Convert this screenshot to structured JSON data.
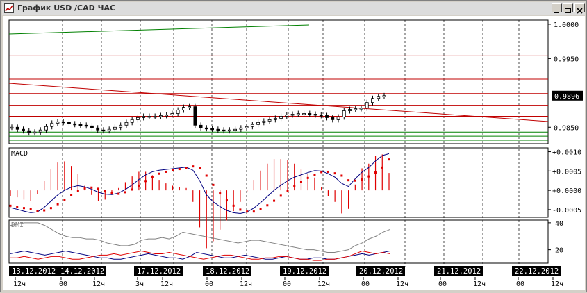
{
  "window": {
    "title": "График USD /CAD  ЧАС",
    "buttons": [
      "minimize",
      "maximize",
      "close"
    ]
  },
  "colors": {
    "background": "#ffffff",
    "frame": "#d4d0c8",
    "candle": "#000000",
    "resistance": "#c00000",
    "support": "#008000",
    "trendline": "#c00000",
    "macd_line": "#000080",
    "macd_signal": "#e00000",
    "dmi_adx": "#808080",
    "dmi_plus": "#000080",
    "dmi_minus": "#e00000",
    "date_label_bg": "#000000",
    "date_label_fg": "#ffffff"
  },
  "price_panel": {
    "axis_labels": [
      "1.0000",
      "0.9950",
      "0.9850"
    ],
    "current_price": "0.9896",
    "ylim": [
      0.9826,
      1.0006
    ]
  },
  "macd_panel": {
    "label": "MACD",
    "axis_labels": [
      "+0.0010",
      "+0.0005",
      "+0.0000",
      "-0.0005"
    ],
    "ylim": [
      -0.0007,
      0.0011
    ]
  },
  "dmi_panel": {
    "label": "DMI",
    "axis_labels": [
      "40",
      "20"
    ],
    "ylim": [
      10,
      42
    ]
  },
  "date_labels": [
    "13.12.2012",
    "14.12.2012",
    "17.12.2012",
    "18.12.2012",
    "19.12.2012",
    "20.12.2012",
    "21.12.2012",
    "22.12.2012"
  ],
  "time_labels": [
    "12ч",
    "00",
    "12ч",
    "3ч",
    "12ч",
    "00",
    "12ч",
    "00",
    "12ч",
    "00",
    "12ч",
    "00",
    "12ч",
    "00",
    "12ч"
  ],
  "chart_data": {
    "type": "line",
    "price": {
      "horizontal_levels": {
        "resistance": [
          0.9954,
          0.992,
          0.9899,
          0.9882,
          0.9866
        ],
        "support": [
          0.9843,
          0.9837,
          0.9831
        ]
      },
      "closes": [
        0.985,
        0.9847,
        0.9845,
        0.9842,
        0.9843,
        0.9846,
        0.9851,
        0.9856,
        0.9858,
        0.9857,
        0.9855,
        0.9854,
        0.9853,
        0.9852,
        0.9849,
        0.9846,
        0.9845,
        0.9847,
        0.985,
        0.9853,
        0.9857,
        0.9861,
        0.9864,
        0.9866,
        0.9866,
        0.9866,
        0.9867,
        0.9868,
        0.987,
        0.9875,
        0.9879,
        0.988,
        0.9853,
        0.9849,
        0.9848,
        0.9847,
        0.9846,
        0.9845,
        0.9846,
        0.9847,
        0.9849,
        0.9851,
        0.9854,
        0.9857,
        0.9859,
        0.9861,
        0.9863,
        0.9866,
        0.9868,
        0.9869,
        0.987,
        0.987,
        0.9869,
        0.9868,
        0.9867,
        0.9864,
        0.9861,
        0.9865,
        0.9874,
        0.9876,
        0.9877,
        0.9878,
        0.9886,
        0.9892,
        0.9895,
        0.9896
      ]
    },
    "macd": {
      "macd": [
        -0.00045,
        -0.00049,
        -0.00054,
        -0.00058,
        -0.00056,
        -0.00044,
        -0.00028,
        -0.00012,
        0.0,
        8e-05,
        0.00012,
        9e-05,
        3e-05,
        -5e-05,
        -0.0001,
        -0.00011,
        -7e-05,
        2e-05,
        0.00014,
        0.00028,
        0.0004,
        0.00048,
        0.00052,
        0.00054,
        0.00056,
        0.00058,
        0.0006,
        0.00052,
        0.00025,
        -0.00012,
        -0.0003,
        -0.00042,
        -0.00052,
        -0.00058,
        -0.0006,
        -0.00056,
        -0.00046,
        -0.00032,
        -0.00016,
        0.0,
        0.00013,
        0.00025,
        0.00034,
        0.0004,
        0.00046,
        0.00051,
        0.0005,
        0.00043,
        0.00034,
        0.00018,
        0.0001,
        0.0003,
        0.00047,
        0.00059,
        0.00076,
        0.0009,
        0.00095
      ],
      "signal": [
        -0.0004,
        -0.00043,
        -0.00046,
        -0.00049,
        -0.00053,
        -0.00052,
        -0.00046,
        -0.00036,
        -0.00025,
        -0.00013,
        -2e-05,
        5e-05,
        7e-05,
        4e-05,
        -2e-05,
        -7e-05,
        -9e-05,
        -5e-05,
        2e-05,
        0.00012,
        0.00024,
        0.00035,
        0.00043,
        0.00048,
        0.00052,
        0.00055,
        0.00058,
        0.00062,
        0.00057,
        0.00038,
        0.00014,
        -8e-05,
        -0.00026,
        -0.0004,
        -0.0005,
        -0.00055,
        -0.00055,
        -0.00049,
        -0.00039,
        -0.00027,
        -0.00014,
        -1e-05,
        0.00011,
        0.00022,
        0.00032,
        0.0004,
        0.00047,
        0.00048,
        0.00044,
        0.00038,
        0.00026,
        0.00025,
        0.00028,
        0.00036,
        0.00046,
        0.00059,
        0.0008
      ]
    },
    "dmi": {
      "adx": [
        38,
        39,
        40,
        40,
        40,
        38,
        35,
        32,
        30,
        29,
        29,
        28,
        28,
        27,
        25,
        24,
        23,
        23,
        24,
        27,
        28,
        28,
        29,
        28,
        30,
        33,
        32,
        31,
        30,
        29,
        28,
        27,
        26,
        25,
        26,
        27,
        27,
        26,
        25,
        24,
        23,
        22,
        21,
        20,
        20,
        19,
        18,
        18,
        19,
        20,
        23,
        25,
        28,
        30,
        33,
        35
      ],
      "plus_di": [
        17,
        18,
        19,
        18,
        17,
        16,
        17,
        18,
        19,
        18,
        17,
        16,
        15,
        14,
        14,
        13,
        13,
        14,
        15,
        16,
        17,
        16,
        15,
        14,
        14,
        13,
        15,
        18,
        17,
        16,
        15,
        14,
        14,
        15,
        16,
        15,
        14,
        13,
        13,
        14,
        15,
        14,
        13,
        13,
        14,
        14,
        13,
        13,
        14,
        15,
        16,
        17,
        16,
        17,
        18,
        19
      ],
      "minus_di": [
        14,
        14,
        15,
        14,
        13,
        14,
        15,
        15,
        14,
        13,
        13,
        14,
        15,
        16,
        16,
        17,
        16,
        17,
        18,
        19,
        18,
        17,
        17,
        18,
        17,
        16,
        15,
        14,
        13,
        14,
        15,
        16,
        16,
        15,
        14,
        13,
        13,
        14,
        14,
        15,
        15,
        14,
        13,
        13,
        12,
        12,
        13,
        13,
        14,
        15,
        17,
        19,
        18,
        17,
        18,
        17
      ]
    }
  }
}
